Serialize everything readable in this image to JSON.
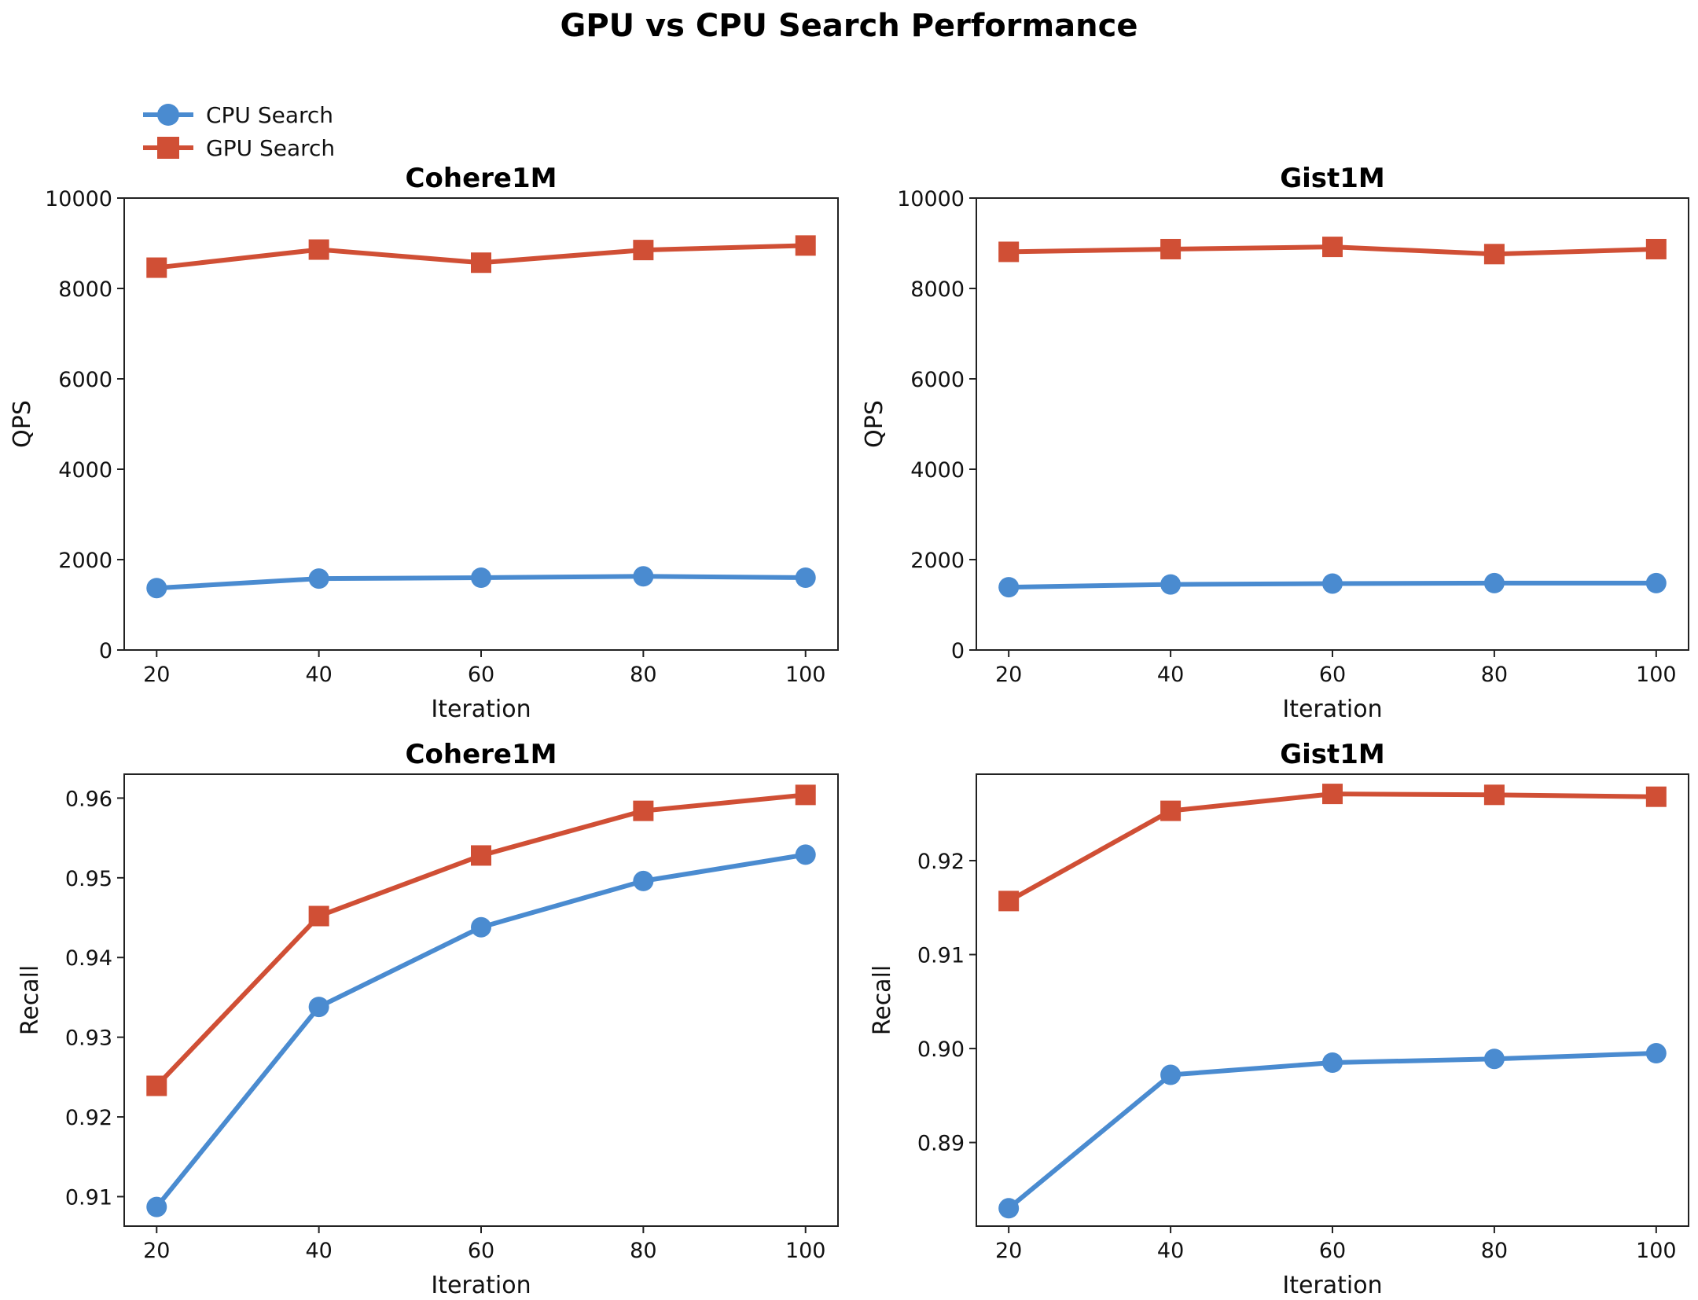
{
  "figure_title": "GPU vs CPU Search Performance",
  "colors": {
    "cpu": "#4a8bd0",
    "gpu": "#d04f35",
    "axis": "#222222"
  },
  "legend": {
    "placement": "top-left",
    "items": [
      {
        "label": "CPU Search",
        "marker": "circle",
        "color": "#4a8bd0"
      },
      {
        "label": "GPU Search",
        "marker": "square",
        "color": "#d04f35"
      }
    ]
  },
  "chart_data": [
    {
      "type": "line",
      "title": "Cohere1M",
      "xlabel": "Iteration",
      "ylabel": "QPS",
      "x": [
        20,
        40,
        60,
        80,
        100
      ],
      "xticks": [
        "20",
        "40",
        "60",
        "80",
        "100"
      ],
      "xlim": [
        16,
        104
      ],
      "ylim": [
        0,
        10000
      ],
      "yticks": [
        0,
        2000,
        4000,
        6000,
        8000,
        10000
      ],
      "ytick_labels": [
        "0",
        "2000",
        "4000",
        "6000",
        "8000",
        "10000"
      ],
      "series": [
        {
          "name": "CPU Search",
          "values": [
            1370,
            1580,
            1600,
            1630,
            1600
          ]
        },
        {
          "name": "GPU Search",
          "values": [
            8460,
            8860,
            8570,
            8850,
            8950
          ]
        }
      ]
    },
    {
      "type": "line",
      "title": "Gist1M",
      "xlabel": "Iteration",
      "ylabel": "QPS",
      "x": [
        20,
        40,
        60,
        80,
        100
      ],
      "xticks": [
        "20",
        "40",
        "60",
        "80",
        "100"
      ],
      "xlim": [
        16,
        104
      ],
      "ylim": [
        0,
        10000
      ],
      "yticks": [
        0,
        2000,
        4000,
        6000,
        8000,
        10000
      ],
      "ytick_labels": [
        "0",
        "2000",
        "4000",
        "6000",
        "8000",
        "10000"
      ],
      "series": [
        {
          "name": "CPU Search",
          "values": [
            1390,
            1450,
            1470,
            1480,
            1480
          ]
        },
        {
          "name": "GPU Search",
          "values": [
            8810,
            8870,
            8920,
            8760,
            8870
          ]
        }
      ]
    },
    {
      "type": "line",
      "title": "Cohere1M",
      "xlabel": "Iteration",
      "ylabel": "Recall",
      "x": [
        20,
        40,
        60,
        80,
        100
      ],
      "xticks": [
        "20",
        "40",
        "60",
        "80",
        "100"
      ],
      "xlim": [
        16,
        104
      ],
      "ylim": [
        0.9063,
        0.963
      ],
      "yticks": [
        0.91,
        0.92,
        0.93,
        0.94,
        0.95,
        0.96
      ],
      "ytick_labels": [
        "0.91",
        "0.92",
        "0.93",
        "0.94",
        "0.95",
        "0.96"
      ],
      "series": [
        {
          "name": "CPU Search",
          "values": [
            0.9087,
            0.9338,
            0.9438,
            0.9496,
            0.9529
          ]
        },
        {
          "name": "GPU Search",
          "values": [
            0.9239,
            0.9452,
            0.9528,
            0.9584,
            0.9604
          ]
        }
      ]
    },
    {
      "type": "line",
      "title": "Gist1M",
      "xlabel": "Iteration",
      "ylabel": "Recall",
      "x": [
        20,
        40,
        60,
        80,
        100
      ],
      "xticks": [
        "20",
        "40",
        "60",
        "80",
        "100"
      ],
      "xlim": [
        16,
        104
      ],
      "ylim": [
        0.8811,
        0.9292
      ],
      "yticks": [
        0.89,
        0.9,
        0.91,
        0.92
      ],
      "ytick_labels": [
        "0.89",
        "0.90",
        "0.91",
        "0.92"
      ],
      "series": [
        {
          "name": "CPU Search",
          "values": [
            0.883,
            0.8972,
            0.8985,
            0.8989,
            0.8995
          ]
        },
        {
          "name": "GPU Search",
          "values": [
            0.9157,
            0.9253,
            0.9271,
            0.927,
            0.9268
          ]
        }
      ]
    }
  ]
}
